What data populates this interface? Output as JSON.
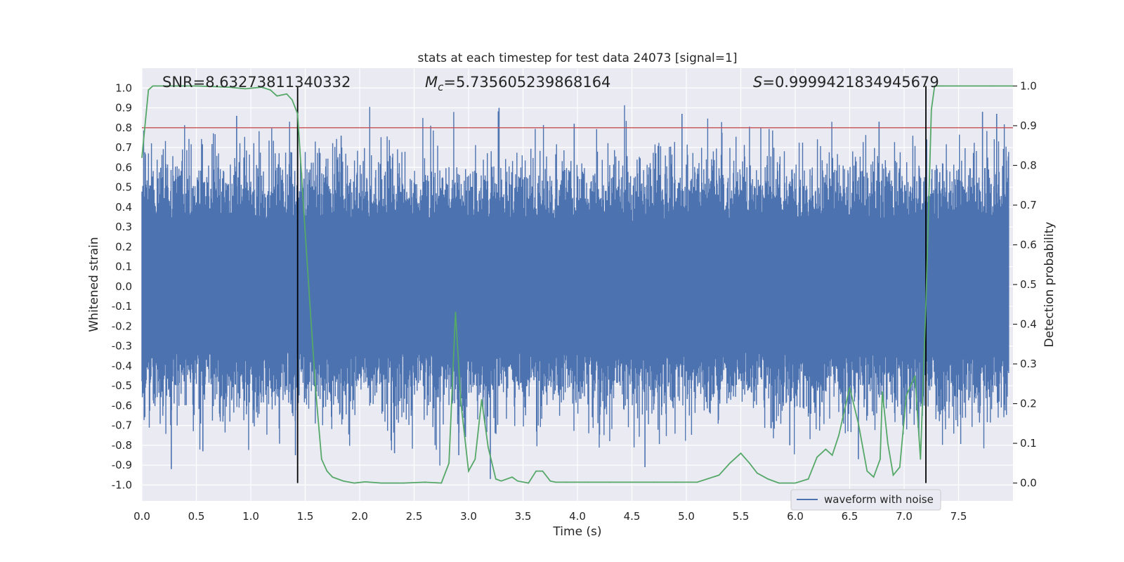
{
  "chart_data": {
    "type": "line",
    "title": "stats at each timestep for test data 24073 [signal=1]",
    "xlabel": "Time (s)",
    "ylabel": "Whitened strain",
    "y2label": "Detection probability",
    "xlim": [
      0.0,
      8.0
    ],
    "ylim": [
      -1.08,
      1.1
    ],
    "y2lim": [
      -0.045,
      1.045
    ],
    "xticks": [
      0.0,
      0.5,
      1.0,
      1.5,
      2.0,
      2.5,
      3.0,
      3.5,
      4.0,
      4.5,
      5.0,
      5.5,
      6.0,
      6.5,
      7.0,
      7.5
    ],
    "xtick_labels": [
      "0.0",
      "0.5",
      "1.0",
      "1.5",
      "2.0",
      "2.5",
      "3.0",
      "3.5",
      "4.0",
      "4.5",
      "5.0",
      "5.5",
      "6.0",
      "6.5",
      "7.0",
      "7.5"
    ],
    "yticks": [
      1.0,
      0.9,
      0.8,
      0.7,
      0.6,
      0.5,
      0.4,
      0.3,
      0.2,
      0.1,
      0.0,
      -0.1,
      -0.2,
      -0.3,
      -0.4,
      -0.5,
      -0.6,
      -0.7,
      -0.8,
      -0.9,
      -1.0
    ],
    "ytick_labels": [
      "1.0",
      "0.9",
      "0.8",
      "0.7",
      "0.6",
      "0.5",
      "0.4",
      "0.3",
      "0.2",
      "0.1",
      "0.0",
      "-0.1",
      "-0.2",
      "-0.3",
      "-0.4",
      "-0.5",
      "-0.6",
      "-0.7",
      "-0.8",
      "-0.9",
      "-1.0"
    ],
    "y2ticks": [
      1.0,
      0.9,
      0.8,
      0.7,
      0.6,
      0.5,
      0.4,
      0.3,
      0.2,
      0.1,
      0.0
    ],
    "y2tick_labels": [
      "1.0",
      "0.9",
      "0.8",
      "0.7",
      "0.6",
      "0.5",
      "0.4",
      "0.3",
      "0.2",
      "0.1",
      "0.0"
    ],
    "annotations": {
      "snr": "SNR=8.63273811340332",
      "mc_symbol": "M",
      "mc_sub": "c",
      "mc_value": "=5.735605239868164",
      "s_symbol": "S",
      "s_value": "=0.9999421834945679"
    },
    "grid": true,
    "legend_position": "bottom-center-right",
    "series": [
      {
        "name": "waveform with noise",
        "axis": "left",
        "color": "#4c72b0",
        "kind": "noise-envelope",
        "typical_amplitude": 0.33,
        "spike_peaks": [
          {
            "x": 0.87,
            "y": 0.86
          },
          {
            "x": 0.27,
            "y": -0.92
          },
          {
            "x": 1.41,
            "y": -0.85
          },
          {
            "x": 3.28,
            "y": 0.9
          },
          {
            "x": 3.2,
            "y": -0.97
          },
          {
            "x": 4.96,
            "y": 0.87
          },
          {
            "x": 4.62,
            "y": -0.91
          },
          {
            "x": 7.72,
            "y": 0.88
          },
          {
            "x": 6.77,
            "y": 0.83
          },
          {
            "x": 7.85,
            "y": 0.87
          },
          {
            "x": 2.32,
            "y": -0.84
          },
          {
            "x": 3.97,
            "y": 0.82
          },
          {
            "x": 5.95,
            "y": -0.8
          },
          {
            "x": 6.58,
            "y": -0.87
          },
          {
            "x": 0.56,
            "y": -0.83
          },
          {
            "x": 1.83,
            "y": 0.76
          },
          {
            "x": 2.91,
            "y": -0.85
          }
        ]
      },
      {
        "name": "",
        "axis": "right",
        "color": "#55a868",
        "x": [
          0.0,
          0.06,
          0.1,
          0.2,
          0.5,
          0.8,
          0.95,
          1.1,
          1.18,
          1.24,
          1.33,
          1.38,
          1.43,
          1.5,
          1.55,
          1.6,
          1.65,
          1.7,
          1.75,
          1.85,
          1.95,
          2.05,
          2.2,
          2.4,
          2.6,
          2.75,
          2.82,
          2.88,
          2.93,
          3.0,
          3.06,
          3.12,
          3.18,
          3.25,
          3.3,
          3.4,
          3.45,
          3.55,
          3.62,
          3.68,
          3.75,
          3.8,
          3.9,
          4.1,
          4.3,
          4.5,
          4.7,
          4.9,
          5.1,
          5.3,
          5.4,
          5.5,
          5.58,
          5.65,
          5.75,
          5.85,
          6.0,
          6.12,
          6.2,
          6.28,
          6.34,
          6.4,
          6.5,
          6.58,
          6.66,
          6.72,
          6.78,
          6.8,
          6.85,
          6.9,
          6.96,
          7.02,
          7.1,
          7.15,
          7.2,
          7.25,
          7.28,
          7.35,
          7.5,
          7.8,
          8.0
        ],
        "y": [
          0.82,
          0.99,
          1.0,
          1.0,
          1.0,
          0.997,
          0.993,
          0.997,
          0.99,
          0.975,
          0.98,
          0.965,
          0.93,
          0.63,
          0.42,
          0.22,
          0.06,
          0.03,
          0.015,
          0.005,
          0.0,
          0.003,
          0.0,
          0.0,
          0.002,
          0.0,
          0.05,
          0.43,
          0.2,
          0.03,
          0.06,
          0.21,
          0.09,
          0.01,
          0.005,
          0.015,
          0.005,
          0.0,
          0.03,
          0.03,
          0.005,
          0.002,
          0.002,
          0.002,
          0.002,
          0.002,
          0.002,
          0.002,
          0.002,
          0.02,
          0.05,
          0.075,
          0.05,
          0.025,
          0.01,
          0.0,
          0.0,
          0.01,
          0.065,
          0.085,
          0.07,
          0.12,
          0.24,
          0.15,
          0.03,
          0.015,
          0.06,
          0.23,
          0.1,
          0.02,
          0.04,
          0.22,
          0.27,
          0.06,
          0.45,
          0.94,
          1.0,
          1.0,
          1.0,
          1.0,
          1.0
        ]
      }
    ],
    "hlines": [
      {
        "axis": "left",
        "y": 0.8,
        "color": "#c44e52"
      }
    ],
    "vlines": [
      {
        "x": 1.43,
        "color": "#000000"
      },
      {
        "x": 7.2,
        "color": "#000000"
      }
    ]
  }
}
